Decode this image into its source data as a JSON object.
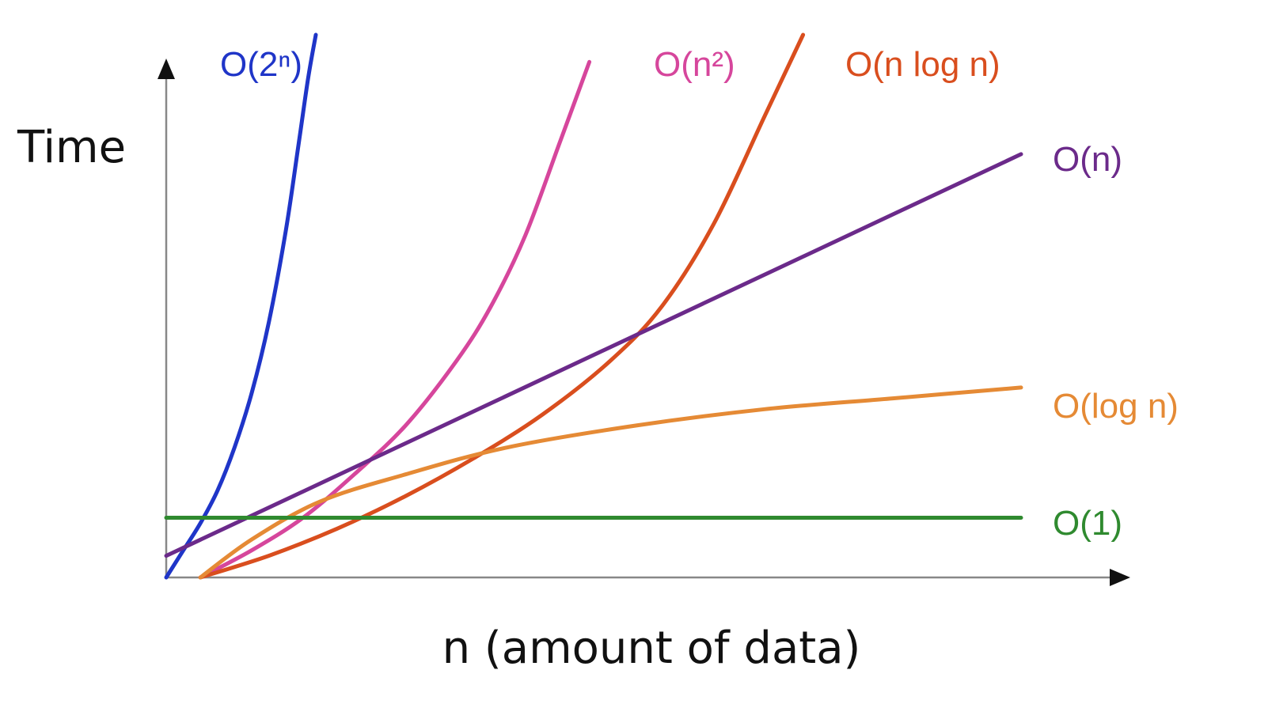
{
  "chart_data": {
    "type": "line",
    "title": "",
    "xlabel": "n (amount of data)",
    "ylabel": "Time",
    "xlim": [
      0,
      100
    ],
    "ylim": [
      0,
      100
    ],
    "grid": false,
    "legend": "inline labels at curve ends",
    "series": [
      {
        "key": "exp",
        "name": "O(2ⁿ)",
        "color": "#1f35c8",
        "x": [
          0,
          2,
          4,
          6,
          8,
          10,
          12,
          14,
          15.5,
          16.6,
          17.5
        ],
        "y": [
          0,
          5,
          10,
          16,
          24,
          34,
          47,
          64,
          80,
          92,
          100
        ]
      },
      {
        "key": "quad",
        "name": "O(n²)",
        "color": "#d6469c",
        "x": [
          4,
          10,
          16,
          22,
          28,
          34,
          38,
          42,
          46,
          49.5
        ],
        "y": [
          0,
          5,
          11,
          19,
          28,
          40,
          50,
          63,
          80,
          95
        ]
      },
      {
        "key": "nlogn",
        "name": "O(n log n)",
        "color": "#d94e1e",
        "x": [
          4,
          12,
          20,
          28,
          36,
          44,
          52,
          58,
          64,
          70,
          74.5
        ],
        "y": [
          0,
          4,
          9,
          15,
          22,
          30,
          40,
          50,
          65,
          85,
          100
        ]
      },
      {
        "key": "log",
        "name": "O(log n)",
        "color": "#e58a35",
        "x": [
          4,
          10,
          18,
          28,
          40,
          55,
          70,
          85,
          100
        ],
        "y": [
          0,
          7,
          14,
          19,
          24,
          28,
          31,
          33,
          35
        ]
      },
      {
        "key": "linear",
        "name": "O(n)",
        "color": "#6b2a8a",
        "x": [
          0,
          100
        ],
        "y": [
          4,
          78
        ]
      },
      {
        "key": "const",
        "name": "O(1)",
        "color": "#2f8a2f",
        "x": [
          0,
          100
        ],
        "y": [
          11,
          11
        ]
      }
    ]
  }
}
